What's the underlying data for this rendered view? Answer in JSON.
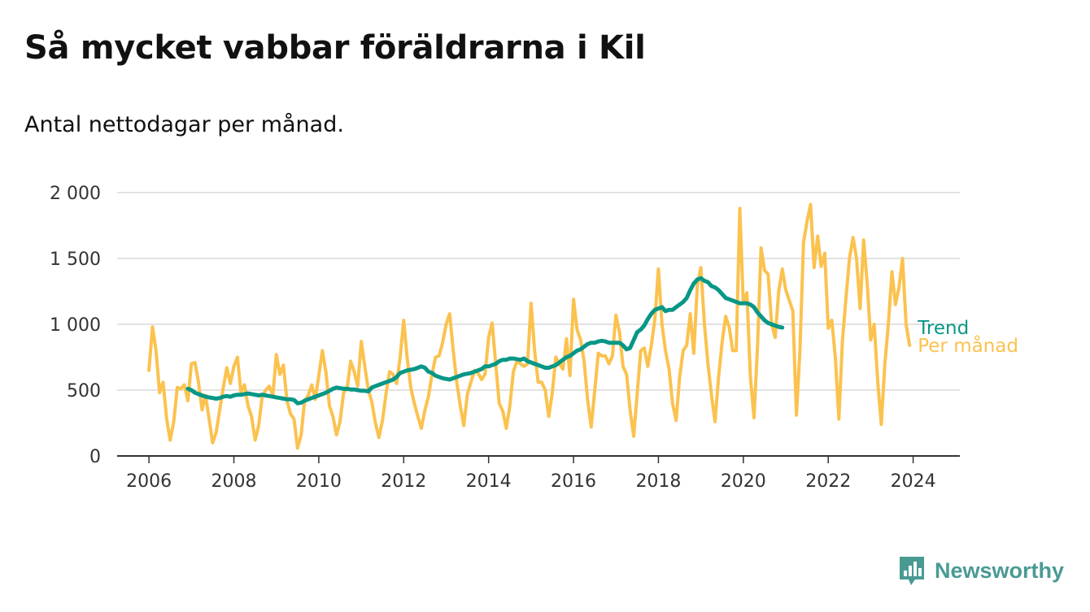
{
  "header": {
    "title": "Så mycket vabbar föräldrarna i Kil",
    "subtitle": "Antal nettodagar per månad."
  },
  "brand": {
    "name": "Newsworthy",
    "icon": "newsworthy-logo-icon",
    "color": "#4a9a94"
  },
  "chart_data": {
    "type": "line",
    "title": "Så mycket vabbar föräldrarna i Kil",
    "subtitle": "Antal nettodagar per månad.",
    "xlabel": "",
    "ylabel": "",
    "xlim": [
      2005.25,
      2025.1
    ],
    "ylim": [
      0,
      2000
    ],
    "x_ticks": [
      2006,
      2008,
      2010,
      2012,
      2014,
      2016,
      2018,
      2020,
      2022,
      2024
    ],
    "y_ticks": [
      0,
      500,
      1000,
      1500,
      2000
    ],
    "y_tick_labels": [
      "0",
      "500",
      "1 000",
      "1 500",
      "2 000"
    ],
    "grid": "horizontal",
    "legend": "right end of lines",
    "series": [
      {
        "name": "Per månad",
        "color": "#fbc24f",
        "start": "2006-01",
        "values": [
          650,
          980,
          800,
          480,
          560,
          280,
          120,
          260,
          520,
          510,
          540,
          420,
          700,
          710,
          560,
          350,
          460,
          280,
          100,
          180,
          350,
          520,
          670,
          550,
          680,
          750,
          480,
          540,
          380,
          300,
          120,
          230,
          450,
          500,
          530,
          460,
          770,
          620,
          690,
          420,
          320,
          280,
          60,
          160,
          420,
          460,
          540,
          430,
          610,
          800,
          640,
          380,
          300,
          160,
          260,
          480,
          510,
          720,
          640,
          530,
          870,
          680,
          500,
          410,
          250,
          140,
          270,
          470,
          640,
          620,
          550,
          750,
          1030,
          740,
          520,
          400,
          300,
          210,
          350,
          450,
          620,
          750,
          760,
          860,
          1000,
          1080,
          800,
          560,
          380,
          230,
          470,
          560,
          650,
          630,
          580,
          620,
          900,
          1010,
          700,
          400,
          340,
          210,
          380,
          640,
          720,
          700,
          680,
          700,
          1160,
          800,
          560,
          560,
          500,
          300,
          480,
          750,
          700,
          660,
          890,
          610,
          1190,
          960,
          880,
          720,
          420,
          220,
          500,
          780,
          760,
          760,
          700,
          760,
          1070,
          940,
          680,
          620,
          350,
          150,
          470,
          800,
          820,
          680,
          840,
          1040,
          1420,
          1000,
          800,
          660,
          400,
          270,
          600,
          800,
          840,
          1080,
          780,
          1300,
          1430,
          1000,
          700,
          460,
          260,
          600,
          860,
          1060,
          980,
          800,
          800,
          1880,
          1160,
          1240,
          600,
          290,
          820,
          1580,
          1410,
          1380,
          1000,
          900,
          1250,
          1420,
          1260,
          1180,
          1100,
          310,
          800,
          1620,
          1780,
          1910,
          1430,
          1670,
          1440,
          1540,
          970,
          1030,
          750,
          280,
          870,
          1200,
          1500,
          1660,
          1500,
          1120,
          1640,
          1320,
          880,
          1000,
          560,
          240,
          700,
          1000,
          1400,
          1150,
          1280,
          1500,
          1000,
          840
        ]
      },
      {
        "name": "Trend",
        "color": "#089786",
        "start": "2006-12",
        "values": [
          510,
          500,
          480,
          470,
          460,
          450,
          445,
          440,
          435,
          440,
          450,
          455,
          450,
          460,
          465,
          465,
          470,
          475,
          470,
          465,
          460,
          465,
          460,
          455,
          450,
          445,
          440,
          435,
          430,
          430,
          425,
          400,
          405,
          420,
          430,
          440,
          450,
          460,
          470,
          480,
          495,
          510,
          520,
          515,
          510,
          510,
          505,
          505,
          500,
          495,
          495,
          490,
          520,
          530,
          540,
          550,
          560,
          570,
          580,
          600,
          630,
          640,
          650,
          655,
          660,
          670,
          680,
          670,
          640,
          630,
          610,
          600,
          590,
          585,
          580,
          590,
          600,
          610,
          620,
          625,
          630,
          640,
          650,
          660,
          680,
          680,
          690,
          700,
          720,
          730,
          730,
          740,
          740,
          735,
          730,
          740,
          720,
          710,
          700,
          690,
          680,
          670,
          670,
          680,
          690,
          710,
          730,
          750,
          760,
          780,
          800,
          810,
          830,
          850,
          860,
          860,
          870,
          875,
          870,
          860,
          860,
          860,
          860,
          840,
          810,
          820,
          880,
          940,
          960,
          990,
          1040,
          1080,
          1110,
          1120,
          1130,
          1100,
          1110,
          1110,
          1130,
          1150,
          1170,
          1200,
          1260,
          1310,
          1340,
          1350,
          1330,
          1320,
          1290,
          1280,
          1260,
          1230,
          1200,
          1190,
          1180,
          1170,
          1160,
          1160,
          1160,
          1150,
          1130,
          1090,
          1060,
          1030,
          1010,
          1000,
          990,
          980,
          975
        ]
      }
    ]
  }
}
